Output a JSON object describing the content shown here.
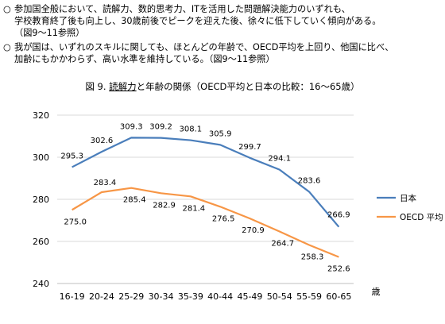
{
  "bullets": [
    {
      "mark": "○",
      "lines": [
        "参加国全般において、読解力、数的思考力、ITを活用した問題解決能力のいずれも、",
        "学校教育終了後も向上し、30歳前後でピークを迎えた後、徐々に低下していく傾向がある。",
        "（図9～11参照）"
      ]
    },
    {
      "mark": "○",
      "lines": [
        "我が国は、いずれのスキルに関しても、ほとんどの年齢で、OECD平均を上回り、他国に比べ、",
        "加齢にもかかわらず、高い水準を維持している。（図9～11参照）"
      ]
    }
  ],
  "figure": {
    "number": "図 9.",
    "title_underlined": "読解力",
    "title_rest": "と年齢の関係（OECD平均と日本の比較：16～65歳）"
  },
  "chart_data": {
    "type": "line",
    "categories": [
      "16-19",
      "20-24",
      "25-29",
      "30-34",
      "35-39",
      "40-44",
      "45-49",
      "50-54",
      "55-59",
      "60-65"
    ],
    "xunit": "歳",
    "ylim": [
      240,
      320
    ],
    "yticks": [
      240,
      260,
      280,
      300,
      320
    ],
    "grid": true,
    "legend_position": "right",
    "series": [
      {
        "name": "日本",
        "color": "#4a7ebb",
        "values": [
          295.3,
          302.6,
          309.3,
          309.2,
          308.1,
          305.9,
          299.7,
          294.1,
          283.6,
          266.9
        ],
        "labels": [
          "295.3",
          "302.6",
          "309.3",
          "309.2",
          "308.1",
          "305.9",
          "299.7",
          "294.1",
          "283.6",
          "266.9"
        ]
      },
      {
        "name": "OECD 平均",
        "color": "#f79646",
        "values": [
          275.0,
          283.4,
          285.4,
          282.9,
          281.4,
          276.5,
          270.9,
          264.7,
          258.3,
          252.6
        ],
        "labels": [
          "275.0",
          "283.4",
          "285.4",
          "282.9",
          "281.4",
          "276.5",
          "270.9",
          "264.7",
          "258.3",
          "252.6"
        ]
      }
    ]
  }
}
